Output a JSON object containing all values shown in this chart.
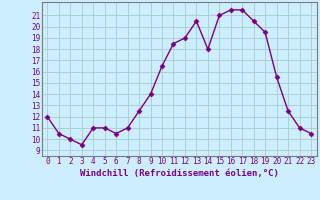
{
  "x": [
    0,
    1,
    2,
    3,
    4,
    5,
    6,
    7,
    8,
    9,
    10,
    11,
    12,
    13,
    14,
    15,
    16,
    17,
    18,
    19,
    20,
    21,
    22,
    23
  ],
  "y": [
    12,
    10.5,
    10,
    9.5,
    11,
    11,
    10.5,
    11,
    12.5,
    14,
    16.5,
    18.5,
    19,
    20.5,
    18,
    21,
    21.5,
    21.5,
    20.5,
    19.5,
    15.5,
    12.5,
    11,
    10.5
  ],
  "line_color": "#7b0080",
  "marker": "D",
  "marker_size": 2.5,
  "line_width": 1.0,
  "bg_color": "#cceeff",
  "grid_color": "#aacccc",
  "xlabel": "Windchill (Refroidissement éolien,°C)",
  "xlabel_fontsize": 6.5,
  "xtick_fontsize": 5.5,
  "ytick_fontsize": 5.5,
  "xlim": [
    -0.5,
    23.5
  ],
  "ylim": [
    8.5,
    22.2
  ],
  "yticks": [
    9,
    10,
    11,
    12,
    13,
    14,
    15,
    16,
    17,
    18,
    19,
    20,
    21
  ],
  "xticks": [
    0,
    1,
    2,
    3,
    4,
    5,
    6,
    7,
    8,
    9,
    10,
    11,
    12,
    13,
    14,
    15,
    16,
    17,
    18,
    19,
    20,
    21,
    22,
    23
  ]
}
